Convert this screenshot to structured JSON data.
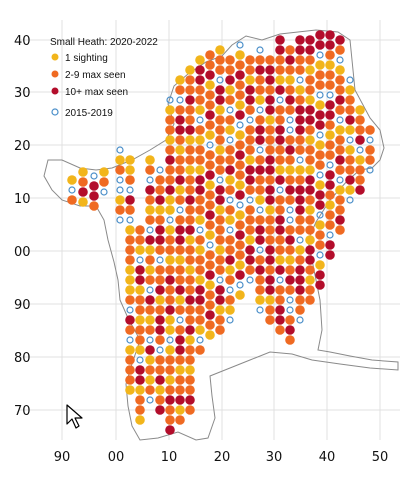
{
  "legend": {
    "title": "Small Heath:  2020-2022",
    "items": [
      {
        "label": "1 sighting",
        "style": "filled",
        "color": "#f2b51b"
      },
      {
        "label": "2-9 max seen",
        "style": "filled",
        "color": "#ef6a22"
      },
      {
        "label": "10+ max seen",
        "style": "filled",
        "color": "#b30d2b"
      },
      {
        "label": "2015-2019",
        "style": "open",
        "color": "#4b8fc9"
      }
    ]
  },
  "axes": {
    "x_ticks": [
      "90",
      "00",
      "10",
      "20",
      "30",
      "40",
      "50"
    ],
    "y_ticks": [
      "40",
      "30",
      "20",
      "10",
      "00",
      "90",
      "80",
      "70"
    ]
  },
  "colors": {
    "one": "#f2b51b",
    "few": "#ef6a22",
    "many": "#b30d2b",
    "past": "#4b8fc9",
    "outline": "#8a8a8a",
    "grid": "#e1e1e1"
  },
  "icons": {
    "cursor": "mouse-pointer-icon"
  }
}
